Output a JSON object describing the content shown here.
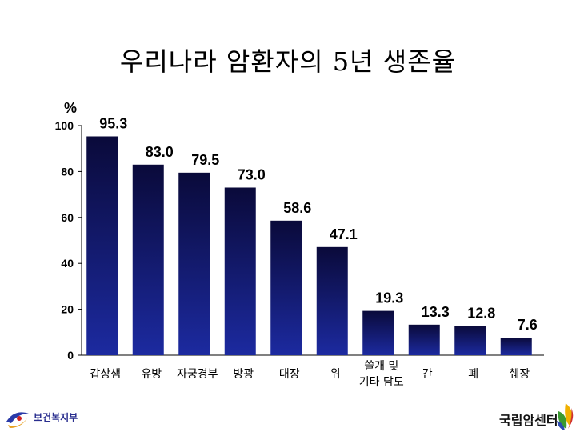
{
  "chart_data": {
    "type": "bar",
    "title": "우리나라 암환자의 5년 생존율",
    "ylabel": "%",
    "ylim": [
      0,
      100
    ],
    "yticks": [
      0,
      20,
      40,
      60,
      80,
      100
    ],
    "categories": [
      [
        "갑상샘"
      ],
      [
        "유방"
      ],
      [
        "자궁경부"
      ],
      [
        "방광"
      ],
      [
        "대장"
      ],
      [
        "위"
      ],
      [
        "쓸개 및",
        "기타 담도"
      ],
      [
        "간"
      ],
      [
        "폐"
      ],
      [
        "췌장"
      ]
    ],
    "values": [
      95.3,
      83.0,
      79.5,
      73.0,
      58.6,
      47.1,
      19.3,
      13.3,
      12.8,
      7.6
    ],
    "value_labels": [
      "95.3",
      "83.0",
      "79.5",
      "73.0",
      "58.6",
      "47.1",
      "19.3",
      "13.3",
      "12.8",
      "7.6"
    ],
    "grid": false,
    "colors": {
      "bar_top": "#0a0a3a",
      "bar_bottom": "#1c2aa0"
    }
  },
  "logos": {
    "left": {
      "name": "보건복지부",
      "icon": "ministry-swirl-icon"
    },
    "right": {
      "name": "국립암센터",
      "icon": "cancer-center-leaf-icon"
    }
  }
}
